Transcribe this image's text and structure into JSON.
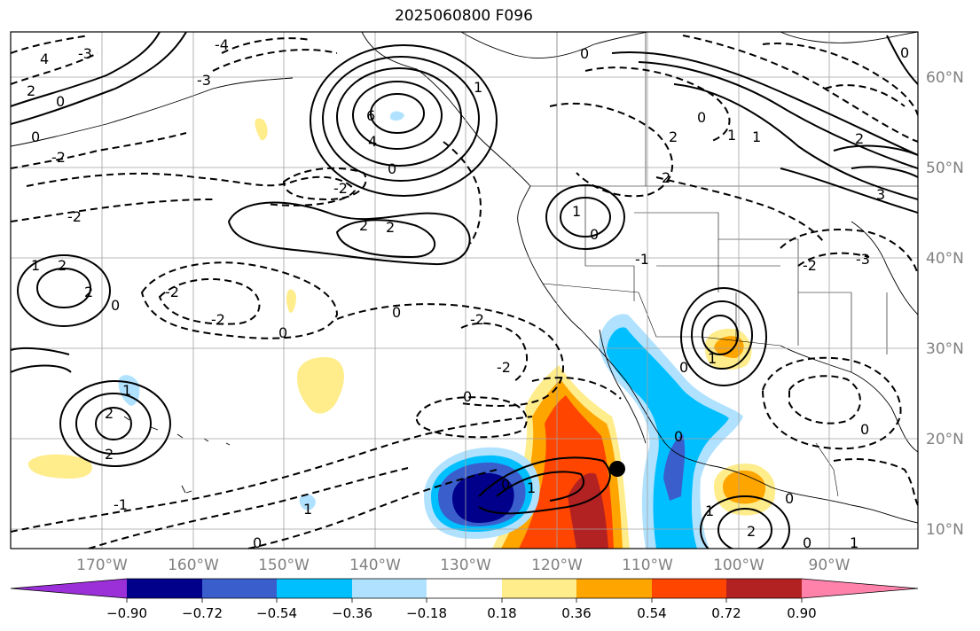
{
  "title": "2025060800 F096",
  "lon_labels": [
    "170°W",
    "160°W",
    "150°W",
    "140°W",
    "130°W",
    "120°W",
    "110°W",
    "100°W",
    "90°W"
  ],
  "lat_labels": [
    "60°N",
    "50°N",
    "40°N",
    "30°N",
    "20°N",
    "10°N"
  ],
  "colorbar": {
    "tick_labels": [
      "−0.90",
      "−0.72",
      "−0.54",
      "−0.36",
      "−0.18",
      "0.18",
      "0.36",
      "0.54",
      "0.72",
      "0.90"
    ],
    "colors": [
      "#9b30d9",
      "#00008b",
      "#3a5fcd",
      "#00bfff",
      "#b0e2ff",
      "#ffffff",
      "#ffec8b",
      "#ffa500",
      "#ff4500",
      "#b22222",
      "#ff82ab"
    ]
  },
  "contour_labels": [
    "6",
    "4",
    "3",
    "2",
    "1",
    "0",
    "-1",
    "-2",
    "-3",
    "-4"
  ],
  "marker": "storm-center"
}
